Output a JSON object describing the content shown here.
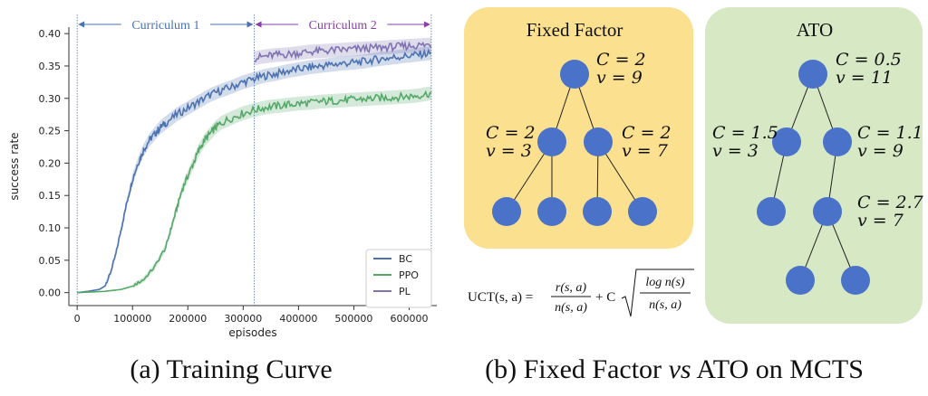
{
  "chart_data": {
    "type": "line",
    "xlabel": "episodes",
    "ylabel": "success rate",
    "xlim": [
      -15000,
      650000
    ],
    "ylim": [
      -0.02,
      0.41
    ],
    "xticks": [
      0,
      100000,
      200000,
      300000,
      400000,
      500000,
      600000
    ],
    "xtick_labels": [
      "0",
      "100000",
      "200000",
      "300000",
      "400000",
      "500000",
      "600000"
    ],
    "yticks": [
      0.0,
      0.05,
      0.1,
      0.15,
      0.2,
      0.25,
      0.3,
      0.35,
      0.4
    ],
    "ytick_labels": [
      "0.00",
      "0.05",
      "0.10",
      "0.15",
      "0.20",
      "0.25",
      "0.30",
      "0.35",
      "0.40"
    ],
    "grid": false,
    "legend_position": "bottom-right",
    "curricula": [
      {
        "label": "Curriculum 1",
        "x_start": 0,
        "x_end": 320000,
        "color": "#4a72b0"
      },
      {
        "label": "Curriculum 2",
        "x_start": 320000,
        "x_end": 640000,
        "color": "#8a3fa8"
      }
    ],
    "series": [
      {
        "name": "BC",
        "color": "#4c72b0",
        "x": [
          0,
          20000,
          40000,
          50000,
          60000,
          70000,
          80000,
          90000,
          100000,
          110000,
          120000,
          130000,
          140000,
          150000,
          160000,
          180000,
          200000,
          220000,
          240000,
          260000,
          280000,
          300000,
          320000,
          340000,
          360000,
          380000,
          400000,
          420000,
          440000,
          460000,
          480000,
          500000,
          520000,
          540000,
          560000,
          580000,
          600000,
          620000,
          640000
        ],
        "y": [
          0.0,
          0.002,
          0.005,
          0.01,
          0.03,
          0.06,
          0.1,
          0.14,
          0.175,
          0.2,
          0.22,
          0.235,
          0.245,
          0.255,
          0.262,
          0.275,
          0.285,
          0.295,
          0.305,
          0.312,
          0.318,
          0.325,
          0.33,
          0.335,
          0.338,
          0.342,
          0.345,
          0.348,
          0.35,
          0.352,
          0.354,
          0.355,
          0.357,
          0.36,
          0.362,
          0.364,
          0.366,
          0.368,
          0.37
        ]
      },
      {
        "name": "PPO",
        "color": "#55a868",
        "x": [
          0,
          50000,
          80000,
          100000,
          120000,
          140000,
          160000,
          170000,
          180000,
          190000,
          200000,
          210000,
          220000,
          230000,
          240000,
          250000,
          260000,
          280000,
          300000,
          320000,
          340000,
          360000,
          380000,
          400000,
          420000,
          440000,
          460000,
          480000,
          500000,
          520000,
          540000,
          560000,
          580000,
          600000,
          620000,
          640000
        ],
        "y": [
          0.0,
          0.002,
          0.005,
          0.01,
          0.02,
          0.04,
          0.07,
          0.1,
          0.13,
          0.16,
          0.18,
          0.2,
          0.22,
          0.235,
          0.245,
          0.255,
          0.262,
          0.27,
          0.277,
          0.282,
          0.286,
          0.288,
          0.29,
          0.292,
          0.293,
          0.295,
          0.296,
          0.297,
          0.298,
          0.299,
          0.3,
          0.301,
          0.302,
          0.303,
          0.305,
          0.308
        ]
      },
      {
        "name": "PL",
        "color": "#8172b2",
        "x": [
          320000,
          340000,
          360000,
          380000,
          400000,
          420000,
          440000,
          460000,
          480000,
          500000,
          520000,
          540000,
          560000,
          580000,
          600000,
          620000,
          640000
        ],
        "y": [
          0.362,
          0.365,
          0.367,
          0.368,
          0.37,
          0.372,
          0.373,
          0.374,
          0.375,
          0.376,
          0.377,
          0.378,
          0.379,
          0.38,
          0.381,
          0.382,
          0.383
        ]
      }
    ]
  },
  "captions": {
    "left": "(a) Training Curve",
    "right_prefix": "(b) Fixed Factor ",
    "right_vs": "vs",
    "right_suffix": " ATO on MCTS"
  },
  "mcts": {
    "fixed": {
      "title": "Fixed Factor",
      "bg_color": "#fbe08f",
      "node_color": "#4a72c8",
      "labels": [
        {
          "c": "C = 2",
          "v": "v = 9"
        },
        {
          "c": "C = 2",
          "v": "v = 3"
        },
        {
          "c": "C = 2",
          "v": "v = 7"
        }
      ]
    },
    "ato": {
      "title": "ATO",
      "bg_color": "#d6e8c4",
      "node_color": "#4a72c8",
      "labels": [
        {
          "c": "C = 0.5",
          "v": "v = 11"
        },
        {
          "c": "C = 1.5",
          "v": "v = 3"
        },
        {
          "c": "C = 1.1",
          "v": "v = 9"
        },
        {
          "c": "C = 2.7",
          "v": "v = 7"
        }
      ]
    },
    "formula": {
      "lhs": "UCT(s, a) =",
      "num1": "r(s, a)",
      "den1": "n(s, a)",
      "plus_c": "+ C",
      "num2": "log n(s)",
      "den2": "n(s, a)"
    }
  }
}
